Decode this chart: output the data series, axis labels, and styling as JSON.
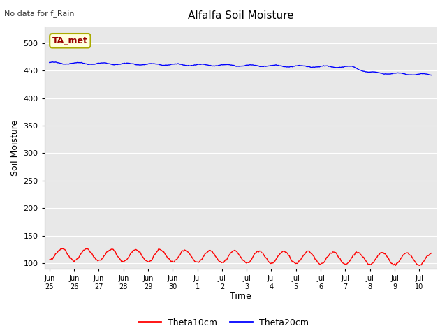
{
  "title": "Alfalfa Soil Moisture",
  "ylabel": "Soil Moisture",
  "xlabel": "Time",
  "top_left_text": "No data for f_Rain",
  "annotation_text": "TA_met",
  "annotation_facecolor": "#ffffdd",
  "annotation_edgecolor": "#aaaa00",
  "annotation_textcolor": "#990000",
  "ylim": [
    90,
    530
  ],
  "yticks": [
    100,
    150,
    200,
    250,
    300,
    350,
    400,
    450,
    500
  ],
  "bg_color": "#e8e8e8",
  "fig_bg_color": "#ffffff",
  "line1_color": "#ff0000",
  "line2_color": "#0000ff",
  "line1_label": "Theta10cm",
  "line2_label": "Theta20cm",
  "xtick_labels": [
    "Jun\n25",
    "Jun\n26",
    "Jun\n27",
    "Jun\n28",
    "Jun\n29",
    "Jun\n30",
    "Jul\n1",
    "Jul\n2",
    "Jul\n3",
    "Jul\n4",
    "Jul\n5",
    "Jul\n6",
    "Jul\n7",
    "Jul\n8",
    "Jul\n9",
    "Jul\n10"
  ],
  "n_days": 15.5
}
